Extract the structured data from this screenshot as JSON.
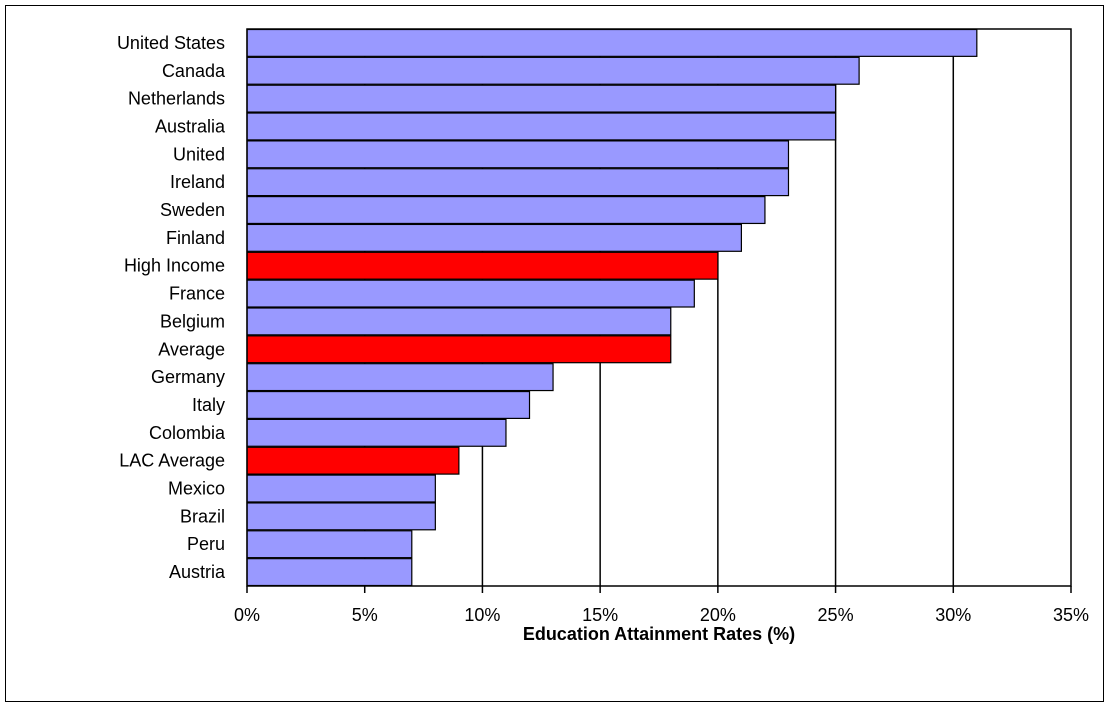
{
  "chart_data": {
    "type": "bar",
    "orientation": "horizontal",
    "categories": [
      "United States",
      "Canada",
      "Netherlands",
      "Australia",
      "United",
      "Ireland",
      "Sweden",
      "Finland",
      "High Income",
      "France",
      "Belgium",
      "Average",
      "Germany",
      "Italy",
      "Colombia",
      "LAC Average",
      "Mexico",
      "Brazil",
      "Peru",
      "Austria"
    ],
    "values": [
      31,
      26,
      25,
      25,
      23,
      23,
      22,
      21,
      20,
      19,
      18,
      18,
      13,
      12,
      11,
      9,
      8,
      8,
      7,
      7
    ],
    "highlighted": [
      "High Income",
      "Average",
      "LAC Average"
    ],
    "xlabel": "Education Attainment Rates (%)",
    "xlim": [
      0,
      35
    ],
    "xticks": [
      0,
      5,
      10,
      15,
      20,
      25,
      30,
      35
    ],
    "xtick_labels": [
      "0%",
      "5%",
      "10%",
      "15%",
      "20%",
      "25%",
      "30%",
      "35%"
    ],
    "grid": "vertical",
    "legend": "none",
    "colors": {
      "bar": "#9999ff",
      "highlight": "#ff0000",
      "outline": "#000000",
      "grid": "#000000"
    }
  }
}
